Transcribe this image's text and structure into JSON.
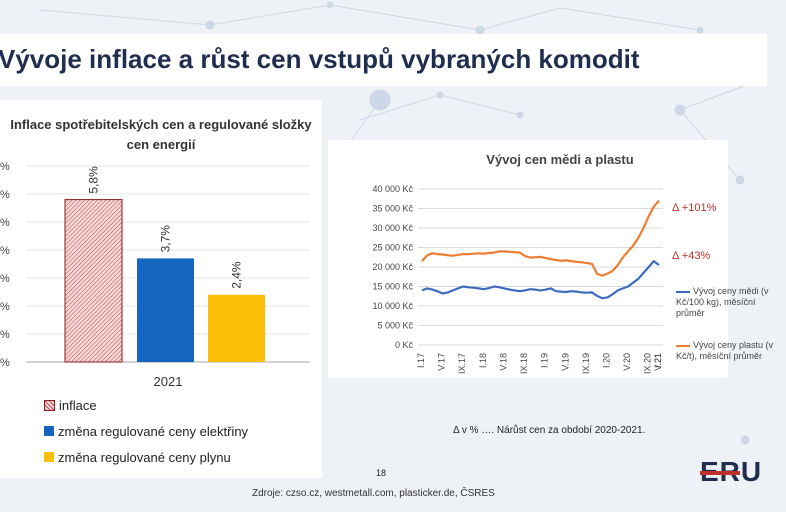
{
  "slide": {
    "title": "Vývoje inflace a růst cen vstupů vybraných komodit",
    "note": "Δ v % …. Nárůst cen za období 2020-2021.",
    "page_number": "18",
    "source": "Zdroje: czso.cz, westmetall.com, plasticker.de, ČSRES",
    "logo_text": "ERU"
  },
  "chart_data": [
    {
      "type": "bar",
      "title": "Inflace spotřebitelských cen a regulované složky cen energií",
      "categories": [
        "2021"
      ],
      "series": [
        {
          "name": "inflace",
          "values": [
            5.8
          ],
          "label": "5,8%",
          "color": "#c0504d",
          "pattern": "hatch"
        },
        {
          "name": "změna regulované ceny elektřiny",
          "values": [
            3.7
          ],
          "label": "3,7%",
          "color": "#1565c0"
        },
        {
          "name": "změna regulované ceny plynu",
          "values": [
            2.4
          ],
          "label": "2,4%",
          "color": "#fbbf07"
        }
      ],
      "ylim": [
        0,
        7
      ],
      "y_ticks": [
        "%",
        "%",
        "%",
        "%",
        "%",
        "%",
        "%",
        "%"
      ],
      "legend_position": "bottom",
      "grid": true
    },
    {
      "type": "line",
      "title": "Vývoj cen mědi a plastu",
      "ylim": [
        0,
        40000
      ],
      "y_ticks": [
        "0 Kč",
        "5 000 Kč",
        "10 000 Kč",
        "15 000 Kč",
        "20 000 Kč",
        "25 000 Kč",
        "30 000 Kč",
        "35 000 Kč",
        "40 000 Kč"
      ],
      "x_ticks": [
        "I.17",
        "V.17",
        "IX.17",
        "I.18",
        "V.18",
        "IX.18",
        "I.19",
        "V.19",
        "IX.19",
        "I.20",
        "V.20",
        "IX.20",
        "I.21",
        "V.21"
      ],
      "grid": true,
      "legend_position": "right",
      "series": [
        {
          "name": "Vývoj ceny mědi (v Kč/100 kg), měsíční průměr",
          "color": "#3b6cc0",
          "values": [
            14000,
            14500,
            14200,
            13800,
            13200,
            13500,
            14000,
            14500,
            15000,
            14800,
            14700,
            14500,
            14300,
            14600,
            15000,
            14800,
            14500,
            14200,
            14000,
            13800,
            14000,
            14300,
            14200,
            14000,
            14200,
            14500,
            13800,
            13700,
            13600,
            13800,
            13700,
            13500,
            13400,
            13500,
            12600,
            12000,
            12200,
            13000,
            14000,
            14500,
            15000,
            16000,
            17000,
            18500,
            20000,
            21500,
            20500
          ]
        },
        {
          "name": "Vývoj ceny plastu (v Kč/t), měsíční průměr",
          "color": "#ed7d31",
          "values": [
            21500,
            23000,
            23500,
            23300,
            23200,
            23000,
            22900,
            23100,
            23300,
            23300,
            23400,
            23500,
            23400,
            23600,
            23700,
            24000,
            24000,
            23900,
            23800,
            23700,
            22800,
            22400,
            22500,
            22600,
            22300,
            22000,
            21800,
            21600,
            21700,
            21500,
            21300,
            21200,
            21000,
            20800,
            18200,
            17800,
            18300,
            19000,
            20500,
            22500,
            24000,
            25500,
            27500,
            30000,
            33000,
            35500,
            37000
          ]
        }
      ],
      "annotations": [
        {
          "text": "Δ +101%",
          "color": "#c0302a"
        },
        {
          "text": "Δ +43%",
          "color": "#c0302a"
        }
      ]
    }
  ]
}
